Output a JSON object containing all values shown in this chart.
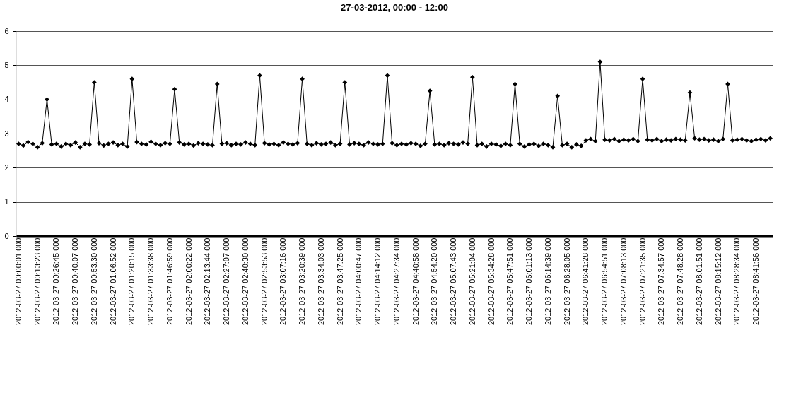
{
  "chart_data": {
    "type": "line",
    "title": "27-03-2012, 00:00 - 12:00",
    "categories": [
      "2012-03-27 00:00:01.000",
      null,
      null,
      null,
      "2012-03-27 00:13:23.000",
      null,
      null,
      null,
      "2012-03-27 00:26:45.000",
      null,
      null,
      null,
      "2012-03-27 00:40:07.000",
      null,
      null,
      null,
      "2012-03-27 00:53:30.000",
      null,
      null,
      null,
      "2012-03-27 01:06:52.000",
      null,
      null,
      null,
      "2012-03-27 01:20:15.000",
      null,
      null,
      null,
      "2012-03-27 01:33:38.000",
      null,
      null,
      null,
      "2012-03-27 01:46:59.000",
      null,
      null,
      null,
      "2012-03-27 02:00:22.000",
      null,
      null,
      null,
      "2012-03-27 02:13:44.000",
      null,
      null,
      null,
      "2012-03-27 02:27:07.000",
      null,
      null,
      null,
      "2012-03-27 02:40:30.000",
      null,
      null,
      null,
      "2012-03-27 02:53:53.000",
      null,
      null,
      null,
      "2012-03-27 03:07:16.000",
      null,
      null,
      null,
      "2012-03-27 03:20:39.000",
      null,
      null,
      null,
      "2012-03-27 03:34:03.000",
      null,
      null,
      null,
      "2012-03-27 03:47:25.000",
      null,
      null,
      null,
      "2012-03-27 04:00:47.000",
      null,
      null,
      null,
      "2012-03-27 04:14:12.000",
      null,
      null,
      null,
      "2012-03-27 04:27:34.000",
      null,
      null,
      null,
      "2012-03-27 04:40:58.000",
      null,
      null,
      null,
      "2012-03-27 04:54:20.000",
      null,
      null,
      null,
      "2012-03-27 05:07:43.000",
      null,
      null,
      null,
      "2012-03-27 05:21:04.000",
      null,
      null,
      null,
      "2012-03-27 05:34:28.000",
      null,
      null,
      null,
      "2012-03-27 05:47:51.000",
      null,
      null,
      null,
      "2012-03-27 06:01:13.000",
      null,
      null,
      null,
      "2012-03-27 06:14:39.000",
      null,
      null,
      null,
      "2012-03-27 06:28:05.000",
      null,
      null,
      null,
      "2012-03-27 06:41:28.000",
      null,
      null,
      null,
      "2012-03-27 06:54:51.000",
      null,
      null,
      null,
      "2012-03-27 07:08:13.000",
      null,
      null,
      null,
      "2012-03-27 07:21:35.000",
      null,
      null,
      null,
      "2012-03-27 07:34:57.000",
      null,
      null,
      null,
      "2012-03-27 07:48:28.000",
      null,
      null,
      null,
      "2012-03-27 08:01:51.000",
      null,
      null,
      null,
      "2012-03-27 08:15:12.000",
      null,
      null,
      null,
      "2012-03-27 08:28:34.000",
      null,
      null,
      null,
      "2012-03-27 08:41:56.000",
      null,
      null,
      null
    ],
    "series": [
      {
        "color": "#000000",
        "values": [
          2.7,
          2.65,
          2.75,
          2.7,
          2.6,
          2.72,
          4.0,
          2.68,
          2.7,
          2.62,
          2.7,
          2.66,
          2.74,
          2.6,
          2.7,
          2.68,
          4.5,
          2.72,
          2.65,
          2.7,
          2.74,
          2.66,
          2.7,
          2.62,
          4.6,
          2.75,
          2.7,
          2.68,
          2.76,
          2.7,
          2.66,
          2.72,
          2.7,
          4.3,
          2.74,
          2.68,
          2.7,
          2.65,
          2.72,
          2.7,
          2.68,
          2.66,
          4.45,
          2.7,
          2.72,
          2.66,
          2.7,
          2.68,
          2.74,
          2.7,
          2.66,
          4.7,
          2.72,
          2.68,
          2.7,
          2.66,
          2.74,
          2.7,
          2.68,
          2.72,
          4.6,
          2.7,
          2.66,
          2.72,
          2.68,
          2.7,
          2.74,
          2.66,
          2.7,
          4.5,
          2.68,
          2.72,
          2.7,
          2.66,
          2.74,
          2.7,
          2.68,
          2.7,
          4.7,
          2.72,
          2.66,
          2.7,
          2.68,
          2.72,
          2.7,
          2.64,
          2.7,
          4.25,
          2.68,
          2.7,
          2.66,
          2.72,
          2.7,
          2.68,
          2.74,
          2.7,
          4.65,
          2.66,
          2.7,
          2.62,
          2.7,
          2.68,
          2.64,
          2.7,
          2.66,
          4.45,
          2.7,
          2.62,
          2.68,
          2.7,
          2.64,
          2.7,
          2.66,
          2.6,
          4.1,
          2.66,
          2.7,
          2.6,
          2.68,
          2.64,
          2.8,
          2.84,
          2.78,
          5.1,
          2.82,
          2.8,
          2.84,
          2.78,
          2.82,
          2.8,
          2.84,
          2.78,
          4.6,
          2.82,
          2.8,
          2.84,
          2.78,
          2.82,
          2.8,
          2.84,
          2.82,
          2.8,
          4.2,
          2.86,
          2.82,
          2.84,
          2.8,
          2.82,
          2.78,
          2.84,
          4.45,
          2.8,
          2.82,
          2.84,
          2.8,
          2.78,
          2.82,
          2.84,
          2.8,
          2.86
        ]
      }
    ],
    "ylim": [
      0,
      6
    ],
    "yticks": [
      0,
      1,
      2,
      3,
      4,
      5,
      6
    ],
    "grid": "y",
    "marker": "diamond",
    "line_style": "solid"
  }
}
